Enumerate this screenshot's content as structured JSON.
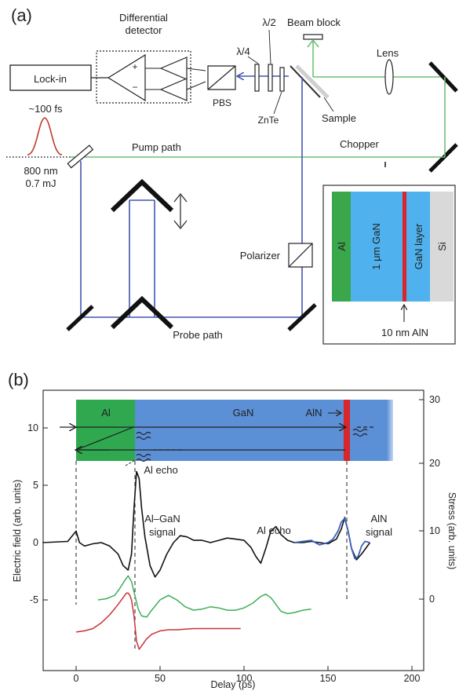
{
  "panel_a": {
    "label": "(a)",
    "lockin": "Lock-in",
    "detector_line1": "Differential",
    "detector_line2": "detector",
    "plus": "+",
    "minus": "−",
    "pbs": "PBS",
    "quarter_wave": "λ/4",
    "half_wave": "λ/2",
    "znte": "ZnTe",
    "beam_block": "Beam block",
    "sample": "Sample",
    "lens": "Lens",
    "pulse_duration": "~100 fs",
    "pump_path": "Pump path",
    "chopper": "Chopper",
    "wavelength": "800 nm",
    "energy": "0.7 mJ",
    "polarizer": "Polarizer",
    "probe_path": "Probe path",
    "inset": {
      "al": "Al",
      "gan_thick": "1 μm GaN",
      "gan_layer": "GaN layer",
      "si": "Si",
      "aln": "10 nm AlN"
    },
    "colors": {
      "pump_beam": "#6fbf73",
      "probe_beam": "#4455b0",
      "pulse": "#c0392b",
      "al_layer": "#3aa84a",
      "gan_layer": "#4fb2ee",
      "aln_layer": "#d8262a",
      "si_layer": "#d9d9d9"
    }
  },
  "panel_b": {
    "label": "(b)",
    "bar": {
      "al": "Al",
      "gan": "GaN",
      "aln": "AlN"
    },
    "annotations": {
      "al_echo_top": "Al echo",
      "al_gan_1": "Al–GaN",
      "al_gan_2": "signal",
      "al_echo_mid": "Al echo",
      "aln_1": "AlN",
      "aln_2": "signal"
    },
    "colors": {
      "al_bar": "#2fa84f",
      "gan_bar": "#5b8fd6",
      "aln_bar": "#d8262a",
      "measured": "#111111",
      "simulated": "#3b62b8",
      "green_trace": "#3fae57",
      "red_trace": "#c8333a"
    }
  },
  "chart_data": {
    "type": "line",
    "xlabel": "Delay (ps)",
    "ylabel": "Electric field (arb. units)",
    "y2label": "Stress (arb. units)",
    "xlim": [
      -20,
      210
    ],
    "ylim": [
      -10,
      13
    ],
    "y2lim": [
      -5,
      30
    ],
    "x_ticks": [
      "0",
      "50",
      "100",
      "150",
      "200"
    ],
    "y_ticks": [
      "10",
      "5",
      "0",
      "-5"
    ],
    "y2_ticks": [
      "30",
      "20",
      "10",
      "0"
    ],
    "series": [
      {
        "x": [
          -20,
          -5,
          0,
          2,
          5,
          10,
          15,
          20,
          25,
          28,
          31,
          33,
          34.5,
          36,
          37.5,
          39,
          41,
          44,
          47,
          50,
          54,
          58,
          62,
          66,
          70,
          75,
          80,
          85,
          90,
          95,
          100,
          104,
          107,
          110,
          113,
          116,
          119,
          122,
          126,
          130,
          135,
          140,
          145,
          150,
          155,
          158,
          160,
          162,
          164,
          167,
          170,
          175
        ],
        "y": [
          0,
          0.1,
          1.0,
          0.0,
          -0.3,
          -0.1,
          0.0,
          -0.3,
          -1.0,
          -2.0,
          -2.4,
          -1.0,
          3.0,
          6.2,
          5.6,
          3.0,
          0.5,
          -2.0,
          -3.0,
          -2.4,
          -1.0,
          0.0,
          0.6,
          0.5,
          0.2,
          0.2,
          0.0,
          0.2,
          0.4,
          0.3,
          0.2,
          -0.4,
          -1.2,
          -1.8,
          -0.5,
          1.0,
          1.4,
          0.7,
          0.2,
          0.0,
          0.0,
          0.1,
          0.0,
          -0.1,
          0.3,
          1.2,
          2.2,
          1.0,
          -0.5,
          -1.5,
          -1.0,
          0.0
        ]
      },
      {
        "x": [
          130,
          135,
          140,
          145,
          150,
          153,
          156,
          158,
          160,
          162,
          164,
          166,
          168,
          170,
          172,
          175
        ],
        "y": [
          0.0,
          0.1,
          0.2,
          -0.2,
          0.0,
          0.3,
          1.0,
          1.8,
          2.1,
          1.0,
          -0.5,
          -1.4,
          -1.2,
          -0.3,
          0.1,
          0.0
        ]
      },
      {
        "x": [
          13,
          18,
          23,
          26,
          29,
          31,
          33,
          35,
          37,
          39,
          42,
          45,
          50,
          55,
          60,
          65,
          70,
          75,
          80,
          85,
          90,
          95,
          100,
          105,
          110,
          113,
          116,
          119,
          122,
          126,
          130,
          135,
          140
        ],
        "y": [
          -5.0,
          -4.9,
          -4.6,
          -4.0,
          -3.3,
          -2.9,
          -3.4,
          -4.6,
          -5.8,
          -6.4,
          -6.5,
          -5.9,
          -5.0,
          -4.6,
          -5.0,
          -5.6,
          -5.9,
          -5.8,
          -5.6,
          -5.7,
          -5.9,
          -5.9,
          -5.7,
          -5.3,
          -4.7,
          -4.5,
          -4.8,
          -5.4,
          -6.0,
          -6.2,
          -6.1,
          -5.9,
          -5.8
        ]
      },
      {
        "x": [
          0,
          5,
          10,
          15,
          20,
          25,
          28,
          30,
          31,
          32,
          33,
          34.5,
          36,
          37.5,
          39,
          42,
          45,
          50,
          55,
          60,
          70,
          80,
          90,
          98
        ],
        "y": [
          -7.8,
          -7.7,
          -7.5,
          -7.0,
          -6.3,
          -5.4,
          -4.8,
          -4.4,
          -4.4,
          -4.6,
          -5.0,
          -6.4,
          -8.6,
          -9.3,
          -9.0,
          -8.4,
          -8.0,
          -7.7,
          -7.6,
          -7.6,
          -7.5,
          -7.5,
          -7.5,
          -7.5
        ]
      }
    ]
  }
}
